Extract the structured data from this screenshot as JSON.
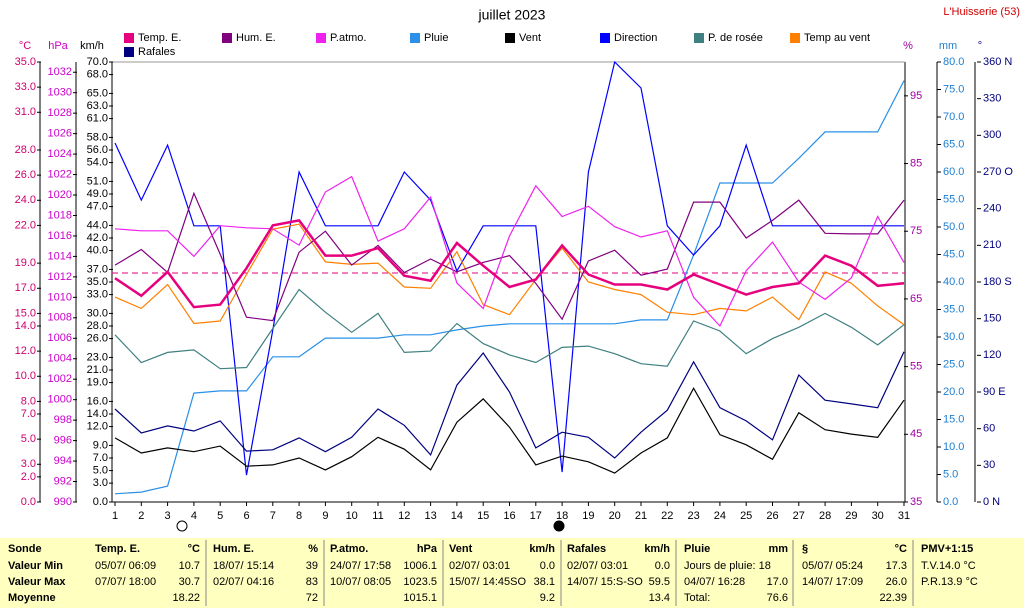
{
  "chart_data": {
    "type": "line",
    "title": "juillet 2023",
    "location": "L'Huisserie (53)",
    "x": [
      1,
      2,
      3,
      4,
      5,
      6,
      7,
      8,
      9,
      10,
      11,
      12,
      13,
      14,
      15,
      16,
      17,
      18,
      19,
      20,
      21,
      22,
      23,
      24,
      25,
      26,
      27,
      28,
      29,
      30,
      31
    ],
    "xlim": [
      1,
      31
    ],
    "xticks": [
      1,
      2,
      3,
      4,
      5,
      6,
      7,
      8,
      9,
      10,
      11,
      12,
      13,
      14,
      15,
      16,
      17,
      18,
      19,
      20,
      21,
      22,
      23,
      24,
      25,
      26,
      27,
      28,
      29,
      30,
      31
    ],
    "axes": {
      "temp": {
        "label": "°C",
        "lim": [
          0,
          35
        ],
        "ticks": [
          {
            "value": 35,
            "label": "35.0"
          },
          {
            "value": 33,
            "label": "33.0"
          },
          {
            "value": 31,
            "label": "31.0"
          },
          {
            "value": 28,
            "label": "28.0"
          },
          {
            "value": 26,
            "label": "26.0"
          },
          {
            "value": 24,
            "label": "24.0"
          },
          {
            "value": 22,
            "label": "22.0"
          },
          {
            "value": 19,
            "label": "19.0"
          },
          {
            "value": 17,
            "label": "17.0"
          },
          {
            "value": 15,
            "label": "15.0"
          },
          {
            "value": 14,
            "label": "14.0"
          },
          {
            "value": 12,
            "label": "12.0"
          },
          {
            "value": 10,
            "label": "10.0"
          },
          {
            "value": 8,
            "label": "8.0"
          },
          {
            "value": 7,
            "label": "7.0"
          },
          {
            "value": 5,
            "label": "5.0"
          },
          {
            "value": 3,
            "label": "3.0"
          },
          {
            "value": 2,
            "label": "2.0"
          },
          {
            "value": 0,
            "label": "0.0"
          }
        ]
      },
      "hpa": {
        "label": "hPa",
        "lim": [
          990,
          1033
        ],
        "ticks": [
          1032,
          1030,
          1028,
          1026,
          1024,
          1022,
          1020,
          1018,
          1016,
          1014,
          1012,
          1010,
          1008,
          1006,
          1004,
          1002,
          1000,
          998,
          996,
          994,
          992,
          990
        ]
      },
      "kmh": {
        "label": "km/h",
        "lim": [
          0,
          70
        ],
        "ticks": [
          {
            "value": 70,
            "label": "70.0"
          },
          {
            "value": 68,
            "label": "68.0"
          },
          {
            "value": 65,
            "label": "65.0"
          },
          {
            "value": 63,
            "label": "63.0"
          },
          {
            "value": 61,
            "label": "61.0"
          },
          {
            "value": 58,
            "label": "58.0"
          },
          {
            "value": 56,
            "label": "56.0"
          },
          {
            "value": 54,
            "label": "54.0"
          },
          {
            "value": 51,
            "label": "51.0"
          },
          {
            "value": 49,
            "label": "49.0"
          },
          {
            "value": 47,
            "label": "47.0"
          },
          {
            "value": 44,
            "label": "44.0"
          },
          {
            "value": 42,
            "label": "42.0"
          },
          {
            "value": 40,
            "label": "40.0"
          },
          {
            "value": 37,
            "label": "37.0"
          },
          {
            "value": 35,
            "label": "35.0"
          },
          {
            "value": 33,
            "label": "33.0"
          },
          {
            "value": 30,
            "label": "30.0"
          },
          {
            "value": 28,
            "label": "28.0"
          },
          {
            "value": 26,
            "label": "26.0"
          },
          {
            "value": 23,
            "label": "23.0"
          },
          {
            "value": 21,
            "label": "21.0"
          },
          {
            "value": 19,
            "label": "19.0"
          },
          {
            "value": 16,
            "label": "16.0"
          },
          {
            "value": 14,
            "label": "14.0"
          },
          {
            "value": 12,
            "label": "12.0"
          },
          {
            "value": 9,
            "label": "9.0"
          },
          {
            "value": 7,
            "label": "7.0"
          },
          {
            "value": 5,
            "label": "5.0"
          },
          {
            "value": 3,
            "label": "3.0"
          },
          {
            "value": 0,
            "label": "0.0"
          }
        ]
      },
      "hum": {
        "label": "%",
        "lim": [
          35,
          100
        ],
        "ticks": [
          95,
          85,
          75,
          65,
          55,
          45,
          35
        ]
      },
      "mm": {
        "label": "mm",
        "lim": [
          0,
          80
        ],
        "ticks": [
          {
            "value": 80,
            "label": "80.0"
          },
          {
            "value": 75,
            "label": "75.0"
          },
          {
            "value": 70,
            "label": "70.0"
          },
          {
            "value": 65,
            "label": "65.0"
          },
          {
            "value": 60,
            "label": "60.0"
          },
          {
            "value": 55,
            "label": "55.0"
          },
          {
            "value": 50,
            "label": "50.0"
          },
          {
            "value": 45,
            "label": "45.0"
          },
          {
            "value": 40,
            "label": "40.0"
          },
          {
            "value": 35,
            "label": "35.0"
          },
          {
            "value": 30,
            "label": "30.0"
          },
          {
            "value": 25,
            "label": "25.0"
          },
          {
            "value": 20,
            "label": "20.0"
          },
          {
            "value": 15,
            "label": "15.0"
          },
          {
            "value": 10,
            "label": "10.0"
          },
          {
            "value": 5,
            "label": "5.0"
          },
          {
            "value": 0,
            "label": "0.0"
          }
        ]
      },
      "deg": {
        "label": "°",
        "lim": [
          0,
          360
        ],
        "ticks": [
          {
            "value": 360,
            "label": "360 N"
          },
          {
            "value": 330,
            "label": "330"
          },
          {
            "value": 300,
            "label": "300"
          },
          {
            "value": 270,
            "label": "270 O"
          },
          {
            "value": 240,
            "label": "240"
          },
          {
            "value": 210,
            "label": "210"
          },
          {
            "value": 180,
            "label": "180 S"
          },
          {
            "value": 150,
            "label": "150"
          },
          {
            "value": 120,
            "label": "120"
          },
          {
            "value": 90,
            "label": "90 E"
          },
          {
            "value": 60,
            "label": "60"
          },
          {
            "value": 30,
            "label": "30"
          },
          {
            "value": 0,
            "label": "0 N"
          }
        ]
      }
    },
    "series": [
      {
        "name": "Temp. E.",
        "color": "#e6007e",
        "axis": "temp",
        "values": [
          17.8,
          16.4,
          18.3,
          15.5,
          15.7,
          18.6,
          22.0,
          22.4,
          19.6,
          19.6,
          20.2,
          18.0,
          17.6,
          20.6,
          18.8,
          17.1,
          17.7,
          20.4,
          18.1,
          17.3,
          17.3,
          16.9,
          18.1,
          17.3,
          16.5,
          17.1,
          17.4,
          19.6,
          18.8,
          17.2,
          17.4
        ]
      },
      {
        "name": "Hum. E.",
        "color": "#800080",
        "axis": "hum",
        "values": [
          70.0,
          72.3,
          68.9,
          80.6,
          71.6,
          62.3,
          61.8,
          71.9,
          75.0,
          70.0,
          72.9,
          68.9,
          70.9,
          69.0,
          70.4,
          71.4,
          67.3,
          62.0,
          70.6,
          72.2,
          68.5,
          69.4,
          79.3,
          79.3,
          74.0,
          76.6,
          79.6,
          74.7,
          74.6,
          74.6,
          79.6
        ]
      },
      {
        "name": "P.atmo.",
        "color": "#ee22ee",
        "axis": "hpa",
        "values": [
          1016.7,
          1016.5,
          1016.5,
          1014.0,
          1017.0,
          1016.8,
          1016.7,
          1015.1,
          1020.3,
          1021.8,
          1015.5,
          1016.7,
          1019.8,
          1011.4,
          1008.9,
          1016.0,
          1020.9,
          1017.9,
          1018.9,
          1016.9,
          1015.9,
          1016.5,
          1010.0,
          1007.2,
          1012.6,
          1015.4,
          1011.5,
          1009.8,
          1011.9,
          1017.9,
          1013.4
        ]
      },
      {
        "name": "Pluie",
        "color": "#2a90e8",
        "axis": "mm",
        "values": [
          1.5,
          1.8,
          2.9,
          19.8,
          20.2,
          20.2,
          26.4,
          26.4,
          29.8,
          29.8,
          29.8,
          30.4,
          30.4,
          31.3,
          32.0,
          32.4,
          32.4,
          32.4,
          32.4,
          32.4,
          33.1,
          33.1,
          44.9,
          58.0,
          58.0,
          58.0,
          62.5,
          67.3,
          67.3,
          67.3,
          76.6
        ]
      },
      {
        "name": "Vent",
        "color": "#000000",
        "axis": "kmh",
        "values": [
          10.2,
          7.8,
          8.6,
          8.0,
          8.9,
          5.7,
          5.9,
          7.0,
          5.1,
          7.2,
          10.3,
          8.4,
          5.1,
          12.7,
          16.4,
          11.9,
          5.9,
          7.3,
          6.4,
          4.6,
          7.8,
          10.2,
          18.1,
          10.7,
          9.1,
          6.8,
          14.2,
          11.5,
          10.8,
          10.3,
          16.2
        ]
      },
      {
        "name": "Direction",
        "color": "#0000ff",
        "axis": "deg",
        "values": [
          293.7,
          247,
          292,
          226,
          226,
          22,
          140.7,
          270,
          226,
          226,
          226,
          270,
          247,
          189,
          226,
          226,
          226,
          24.5,
          270,
          360,
          338.7,
          226,
          202,
          226,
          292,
          226,
          226,
          226,
          226,
          226,
          226
        ]
      },
      {
        "name": "P. de rosée",
        "color": "#408080",
        "axis": "temp",
        "values": [
          13.3,
          11.1,
          11.9,
          12.1,
          10.6,
          10.7,
          13.8,
          16.9,
          15.1,
          13.5,
          15.0,
          11.9,
          12.0,
          14.2,
          12.6,
          11.7,
          11.1,
          12.3,
          12.4,
          11.8,
          11.0,
          10.8,
          14.4,
          13.6,
          11.8,
          13.0,
          13.9,
          15.0,
          13.9,
          12.5,
          14.1
        ]
      },
      {
        "name": "Temp au vent",
        "color": "#ff8000",
        "axis": "temp",
        "values": [
          16.3,
          15.4,
          17.3,
          14.2,
          14.4,
          18.1,
          21.7,
          22.1,
          19.1,
          18.9,
          19.0,
          17.1,
          17.0,
          19.9,
          15.7,
          14.9,
          17.7,
          20.2,
          17.5,
          16.9,
          16.5,
          15.1,
          14.9,
          15.4,
          15.2,
          16.3,
          14.5,
          18.3,
          17.4,
          15.6,
          14.1
        ]
      },
      {
        "name": "Rafales",
        "color": "#000080",
        "axis": "kmh",
        "values": [
          14.8,
          11.0,
          12.1,
          11.3,
          12.9,
          8.1,
          8.3,
          10.2,
          8.0,
          10.3,
          14.8,
          12.2,
          7.5,
          18.6,
          23.7,
          17.5,
          8.6,
          11.1,
          10.3,
          7.0,
          11.1,
          14.6,
          22.3,
          15.0,
          12.9,
          9.9,
          20.2,
          16.2,
          15.6,
          15.0,
          23.9
        ]
      }
    ]
  },
  "summary": {
    "row_labels": [
      "Sonde",
      "Valeur Min",
      "Valeur Max",
      "Moyenne"
    ],
    "columns": [
      {
        "name": "Temp. E.",
        "unit": "°C",
        "cells": [
          {
            "left": "05/07/ 06:09",
            "right": "10.7"
          },
          {
            "left": "07/07/ 18:00",
            "right": "30.7"
          },
          {
            "right": "18.22"
          }
        ]
      },
      {
        "name": "Hum. E.",
        "unit": "%",
        "cells": [
          {
            "left": "18/07/ 15:14",
            "right": "39"
          },
          {
            "left": "02/07/ 04:16",
            "right": "83"
          },
          {
            "right": "72"
          }
        ]
      },
      {
        "name": "P.atmo.",
        "unit": "hPa",
        "cells": [
          {
            "left": "24/07/ 17:58",
            "right": "1006.1"
          },
          {
            "left": "10/07/ 08:05",
            "right": "1023.5"
          },
          {
            "right": "1015.1"
          }
        ]
      },
      {
        "name": "Vent",
        "unit": "km/h",
        "cells": [
          {
            "left": "02/07/ 03:01",
            "right": "0.0"
          },
          {
            "left": "15/07/ 14:45SO",
            "right": "38.1"
          },
          {
            "right": "9.2"
          }
        ]
      },
      {
        "name": "Rafales",
        "unit": "km/h",
        "cells": [
          {
            "left": "02/07/ 03:01",
            "right": "0.0"
          },
          {
            "left": "14/07/ 15:S-SO",
            "right": "59.5"
          },
          {
            "right": "13.4"
          }
        ]
      },
      {
        "name": "Pluie",
        "unit": "mm",
        "cells": [
          {
            "left": "Jours de pluie: 18"
          },
          {
            "left": "04/07/ 16:28",
            "right": "17.0"
          },
          {
            "left": "Total:",
            "right": "76.6"
          }
        ]
      },
      {
        "name": "§",
        "unit": "°C",
        "cells": [
          {
            "left": "05/07/ 05:24",
            "right": "17.3"
          },
          {
            "left": "14/07/ 17:09",
            "right": "26.0"
          },
          {
            "right": "22.39"
          }
        ]
      },
      {
        "name": "PMV+1:15",
        "cells": [
          {
            "left": "T.V.14.0 °C"
          },
          {
            "left": "P.R.13.9 °C"
          }
        ]
      }
    ]
  }
}
